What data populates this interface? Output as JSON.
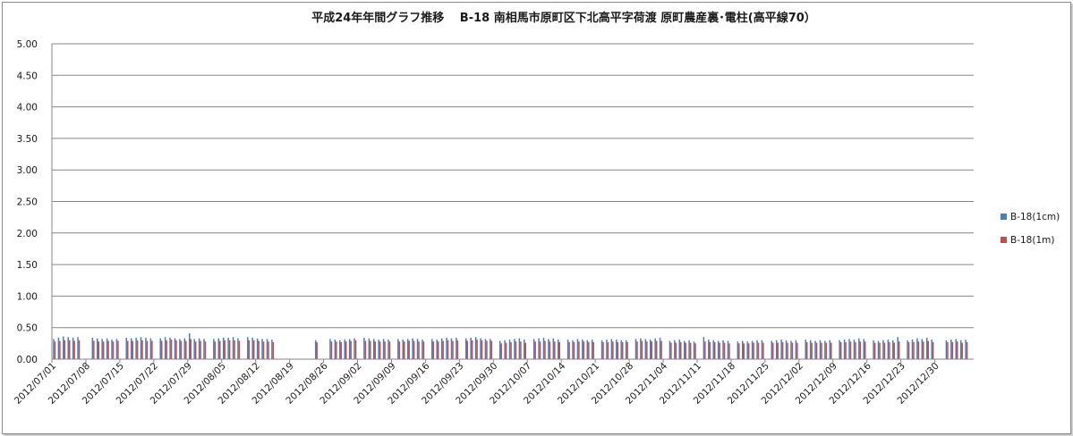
{
  "chart_data": {
    "type": "bar",
    "title": "平成24年年間グラフ推移　 B-18 南相馬市原町区下北高平字荷渡 原町農産裏･電柱(高平線70）",
    "xlabel": "",
    "ylabel": "",
    "ylim": [
      0,
      5
    ],
    "yticks": [
      "0.00",
      "0.50",
      "1.00",
      "1.50",
      "2.00",
      "2.50",
      "3.00",
      "3.50",
      "4.00",
      "4.50",
      "5.00"
    ],
    "grid": true,
    "legend_position": "right",
    "x_tick_labels": [
      "2012/07/01",
      "2012/07/08",
      "2012/07/15",
      "2012/07/22",
      "2012/07/29",
      "2012/08/05",
      "2012/08/12",
      "2012/08/19",
      "2012/08/26",
      "2012/09/02",
      "2012/09/09",
      "2012/09/16",
      "2012/09/23",
      "2012/09/30",
      "2012/10/07",
      "2012/10/14",
      "2012/10/21",
      "2012/10/28",
      "2012/11/04",
      "2012/11/11",
      "2012/11/18",
      "2012/11/25",
      "2012/12/02",
      "2012/12/09",
      "2012/12/16",
      "2012/12/23",
      "2012/12/30"
    ],
    "series": [
      {
        "name": "B-18(1cm)",
        "color": "#4a7ebb",
        "values": [
          0.32,
          0.34,
          0.36,
          0.35,
          0.34,
          0.35,
          0,
          0,
          0.34,
          0.33,
          0.32,
          0.33,
          0.31,
          0.32,
          0,
          0.34,
          0.33,
          0.34,
          0.35,
          0.34,
          0.33,
          0,
          0.33,
          0.35,
          0.34,
          0.33,
          0.32,
          0.33,
          0.41,
          0.32,
          0.33,
          0.32,
          0,
          0.32,
          0.33,
          0.34,
          0.34,
          0.35,
          0.33,
          0,
          0.35,
          0.34,
          0.33,
          0.32,
          0.32,
          0.31,
          0,
          0,
          0,
          0,
          0,
          0,
          0,
          0,
          0.3,
          0,
          0,
          0.32,
          0.31,
          0.3,
          0.31,
          0.32,
          0.33,
          0,
          0.34,
          0.33,
          0.32,
          0.31,
          0.32,
          0.31,
          0,
          0.32,
          0.31,
          0.32,
          0.33,
          0.32,
          0.31,
          0,
          0.32,
          0.31,
          0.33,
          0.34,
          0.33,
          0.34,
          0,
          0.33,
          0.34,
          0.35,
          0.33,
          0.32,
          0.32,
          0,
          0.29,
          0.3,
          0.31,
          0.32,
          0.33,
          0.31,
          0,
          0.32,
          0.33,
          0.34,
          0.32,
          0.33,
          0.31,
          0,
          0.31,
          0.3,
          0.32,
          0.31,
          0.3,
          0.31,
          0,
          0.3,
          0.31,
          0.32,
          0.31,
          0.3,
          0.3,
          0,
          0.32,
          0.33,
          0.32,
          0.31,
          0.33,
          0.34,
          0,
          0.29,
          0.3,
          0.31,
          0.29,
          0.3,
          0.28,
          0,
          0.35,
          0.31,
          0.3,
          0.29,
          0.3,
          0.29,
          0,
          0.28,
          0.29,
          0.28,
          0.29,
          0.3,
          0.3,
          0,
          0.29,
          0.3,
          0.31,
          0.3,
          0.29,
          0.3,
          0,
          0.31,
          0.3,
          0.29,
          0.3,
          0.29,
          0.3,
          0,
          0.3,
          0.31,
          0.32,
          0.31,
          0.33,
          0.32,
          0,
          0.3,
          0.29,
          0.3,
          0.31,
          0.3,
          0.35,
          0,
          0.3,
          0.31,
          0.33,
          0.32,
          0.34,
          0.31,
          0,
          0,
          0.3,
          0.31,
          0.32,
          0.3,
          0.31,
          0
        ],
        "note": ""
      },
      {
        "name": "B-18(1m)",
        "color": "#c0504d",
        "values": [
          0.28,
          0.29,
          0.3,
          0.3,
          0.29,
          0.3,
          0,
          0,
          0.29,
          0.28,
          0.28,
          0.29,
          0.28,
          0.29,
          0,
          0.29,
          0.29,
          0.3,
          0.3,
          0.29,
          0.29,
          0,
          0.29,
          0.3,
          0.31,
          0.3,
          0.29,
          0.29,
          0.32,
          0.28,
          0.29,
          0.28,
          0,
          0.28,
          0.29,
          0.3,
          0.3,
          0.3,
          0.29,
          0,
          0.3,
          0.3,
          0.29,
          0.28,
          0.28,
          0.27,
          0,
          0,
          0,
          0,
          0,
          0,
          0,
          0,
          0.27,
          0,
          0,
          0.28,
          0.28,
          0.27,
          0.28,
          0.29,
          0.3,
          0,
          0.29,
          0.29,
          0.28,
          0.28,
          0.28,
          0.28,
          0,
          0.28,
          0.28,
          0.29,
          0.29,
          0.28,
          0.28,
          0,
          0.28,
          0.28,
          0.29,
          0.3,
          0.29,
          0.3,
          0,
          0.29,
          0.3,
          0.31,
          0.3,
          0.29,
          0.29,
          0,
          0.25,
          0.26,
          0.27,
          0.28,
          0.28,
          0.26,
          0,
          0.28,
          0.28,
          0.29,
          0.28,
          0.28,
          0.27,
          0,
          0.27,
          0.27,
          0.28,
          0.28,
          0.27,
          0.27,
          0,
          0.27,
          0.27,
          0.28,
          0.27,
          0.27,
          0.27,
          0,
          0.28,
          0.29,
          0.28,
          0.28,
          0.29,
          0.29,
          0,
          0.26,
          0.26,
          0.27,
          0.26,
          0.26,
          0.25,
          0,
          0.28,
          0.27,
          0.27,
          0.26,
          0.26,
          0.25,
          0,
          0.25,
          0.25,
          0.25,
          0.26,
          0.26,
          0.26,
          0,
          0.26,
          0.26,
          0.27,
          0.26,
          0.26,
          0.26,
          0,
          0.27,
          0.26,
          0.26,
          0.26,
          0.26,
          0.26,
          0,
          0.27,
          0.27,
          0.28,
          0.27,
          0.28,
          0.28,
          0,
          0.26,
          0.26,
          0.26,
          0.27,
          0.26,
          0.28,
          0,
          0.27,
          0.27,
          0.28,
          0.28,
          0.29,
          0.27,
          0,
          0,
          0.27,
          0.27,
          0.28,
          0.26,
          0.27,
          0
        ]
      }
    ]
  }
}
